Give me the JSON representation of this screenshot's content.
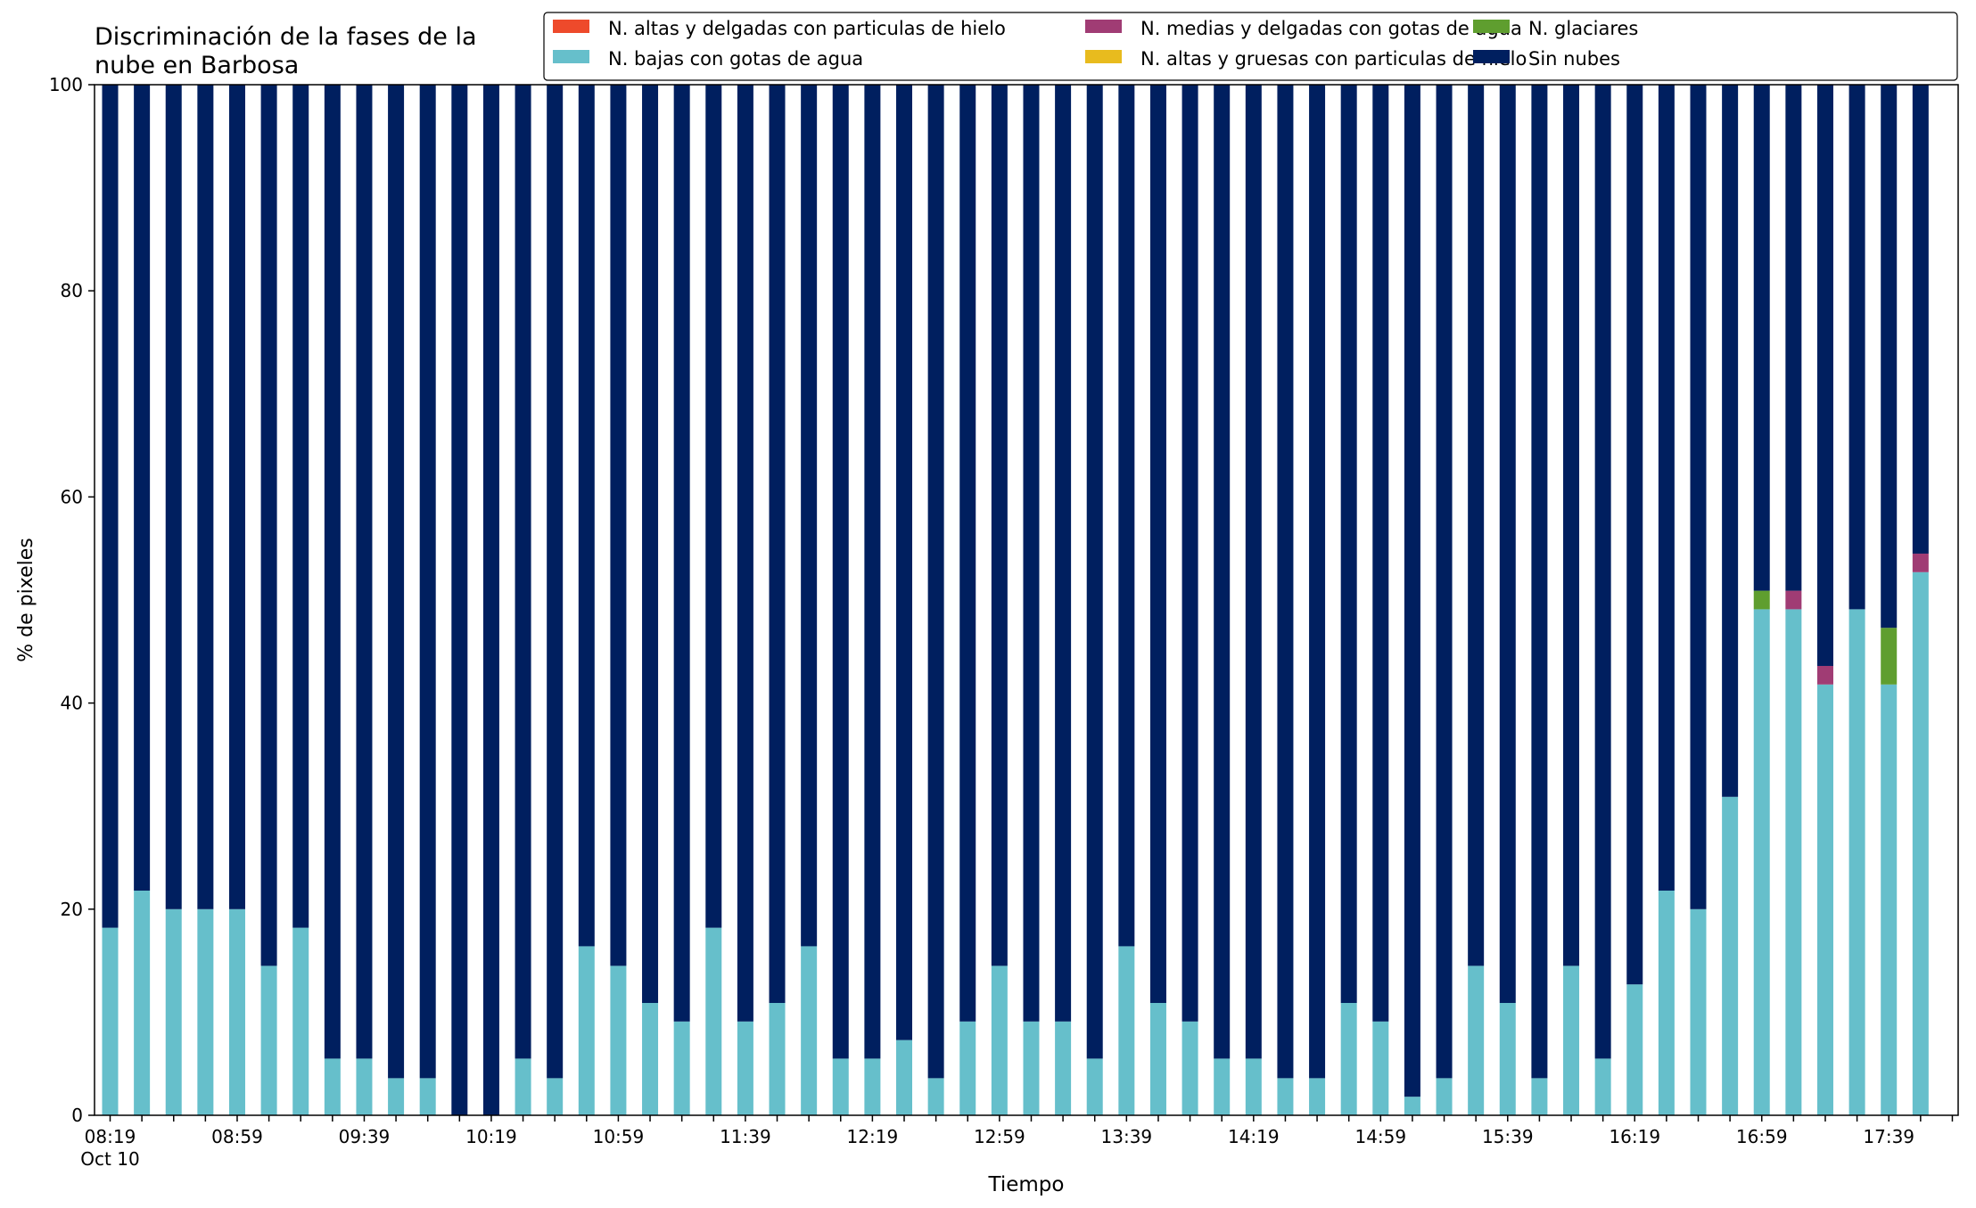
{
  "chart_data": {
    "type": "bar",
    "stacked": true,
    "title": "Discriminación de la fases de la\nnube en Barbosa",
    "xlabel": "Tiempo",
    "ylabel": "% de pixeles",
    "ylim": [
      0,
      100
    ],
    "yticks": [
      0,
      20,
      40,
      60,
      80,
      100
    ],
    "grid": false,
    "legend_position": "top-right",
    "x_date_label": "Oct 10",
    "categories": [
      "08:19",
      "08:29",
      "08:39",
      "08:49",
      "08:59",
      "09:09",
      "09:19",
      "09:29",
      "09:39",
      "09:49",
      "09:59",
      "10:09",
      "10:19",
      "10:29",
      "10:39",
      "10:49",
      "10:59",
      "11:09",
      "11:19",
      "11:29",
      "11:39",
      "11:49",
      "11:59",
      "12:09",
      "12:19",
      "12:29",
      "12:39",
      "12:49",
      "12:59",
      "13:09",
      "13:19",
      "13:29",
      "13:39",
      "13:49",
      "13:59",
      "14:09",
      "14:19",
      "14:29",
      "14:39",
      "14:49",
      "14:59",
      "15:09",
      "15:19",
      "15:29",
      "15:39",
      "15:49",
      "15:59",
      "16:09",
      "16:19",
      "16:29",
      "16:39",
      "16:49",
      "16:59",
      "17:09",
      "17:19",
      "17:29",
      "17:39",
      "17:49"
    ],
    "tick_labels": [
      "08:19",
      "08:59",
      "09:39",
      "10:19",
      "10:59",
      "11:39",
      "12:19",
      "12:59",
      "13:39",
      "14:19",
      "14:59",
      "15:39",
      "16:19",
      "16:59",
      "17:39"
    ],
    "series": [
      {
        "name": "N. altas y delgadas con particulas de hielo",
        "color": "#ee4a2b",
        "values": [
          0,
          0,
          0,
          0,
          0,
          0,
          0,
          0,
          0,
          0,
          0,
          0,
          0,
          0,
          0,
          0,
          0,
          0,
          0,
          0,
          0,
          0,
          0,
          0,
          0,
          0,
          0,
          0,
          0,
          0,
          0,
          0,
          0,
          0,
          0,
          0,
          0,
          0,
          0,
          0,
          0,
          0,
          0,
          0,
          0,
          0,
          0,
          0,
          0,
          0,
          0,
          0,
          0,
          0,
          0,
          0,
          0,
          0
        ]
      },
      {
        "name": "N. altas y gruesas con particulas de hielo",
        "color": "#e8bb1e",
        "values": [
          0,
          0,
          0,
          0,
          0,
          0,
          0,
          0,
          0,
          0,
          0,
          0,
          0,
          0,
          0,
          0,
          0,
          0,
          0,
          0,
          0,
          0,
          0,
          0,
          0,
          0,
          0,
          0,
          0,
          0,
          0,
          0,
          0,
          0,
          0,
          0,
          0,
          0,
          0,
          0,
          0,
          0,
          0,
          0,
          0,
          0,
          0,
          0,
          0,
          0,
          0,
          0,
          0,
          0,
          0,
          0,
          0,
          0
        ]
      },
      {
        "name": "N. bajas con gotas de agua",
        "color": "#66bfcb",
        "values": [
          18.2,
          21.8,
          20.0,
          20.0,
          20.0,
          14.5,
          18.2,
          5.5,
          5.5,
          3.6,
          3.6,
          0,
          0,
          5.5,
          3.6,
          16.4,
          14.5,
          10.9,
          9.1,
          18.2,
          9.1,
          10.9,
          16.4,
          5.5,
          5.5,
          7.3,
          3.6,
          9.1,
          14.5,
          9.1,
          9.1,
          5.5,
          16.4,
          10.9,
          9.1,
          5.5,
          5.5,
          3.6,
          3.6,
          10.9,
          9.1,
          1.8,
          3.6,
          14.5,
          10.9,
          3.6,
          14.5,
          5.5,
          12.7,
          21.8,
          20.0,
          30.9,
          49.1,
          49.1,
          41.8,
          49.1,
          41.8,
          52.7
        ]
      },
      {
        "name": "N. glaciares",
        "color": "#5f9e2f",
        "values": [
          0,
          0,
          0,
          0,
          0,
          0,
          0,
          0,
          0,
          0,
          0,
          0,
          0,
          0,
          0,
          0,
          0,
          0,
          0,
          0,
          0,
          0,
          0,
          0,
          0,
          0,
          0,
          0,
          0,
          0,
          0,
          0,
          0,
          0,
          0,
          0,
          0,
          0,
          0,
          0,
          0,
          0,
          0,
          0,
          0,
          0,
          0,
          0,
          0,
          0,
          0,
          0,
          1.8,
          0,
          0,
          0,
          5.5,
          0
        ]
      },
      {
        "name": "N. medias y delgadas con gotas de agua",
        "color": "#a03c74",
        "values": [
          0,
          0,
          0,
          0,
          0,
          0,
          0,
          0,
          0,
          0,
          0,
          0,
          0,
          0,
          0,
          0,
          0,
          0,
          0,
          0,
          0,
          0,
          0,
          0,
          0,
          0,
          0,
          0,
          0,
          0,
          0,
          0,
          0,
          0,
          0,
          0,
          0,
          0,
          0,
          0,
          0,
          0,
          0,
          0,
          0,
          0,
          0,
          0,
          0,
          0,
          0,
          0,
          0,
          1.8,
          1.8,
          0,
          0,
          1.8
        ]
      },
      {
        "name": "Sin nubes",
        "color": "#001f5f",
        "values": [
          81.8,
          78.2,
          80.0,
          80.0,
          80.0,
          85.5,
          81.8,
          94.5,
          94.5,
          96.4,
          96.4,
          100,
          100,
          94.5,
          96.4,
          83.6,
          85.5,
          89.1,
          90.9,
          81.8,
          90.9,
          89.1,
          83.6,
          94.5,
          94.5,
          92.7,
          96.4,
          90.9,
          85.5,
          90.9,
          90.9,
          94.5,
          83.6,
          89.1,
          90.9,
          94.5,
          94.5,
          96.4,
          96.4,
          89.1,
          90.9,
          98.2,
          96.4,
          85.5,
          89.1,
          96.4,
          85.5,
          94.5,
          87.3,
          78.2,
          80.0,
          69.1,
          49.1,
          49.1,
          56.4,
          50.9,
          52.7,
          45.5
        ]
      }
    ],
    "legend_order": [
      0,
      2,
      4,
      1,
      3,
      5
    ]
  }
}
